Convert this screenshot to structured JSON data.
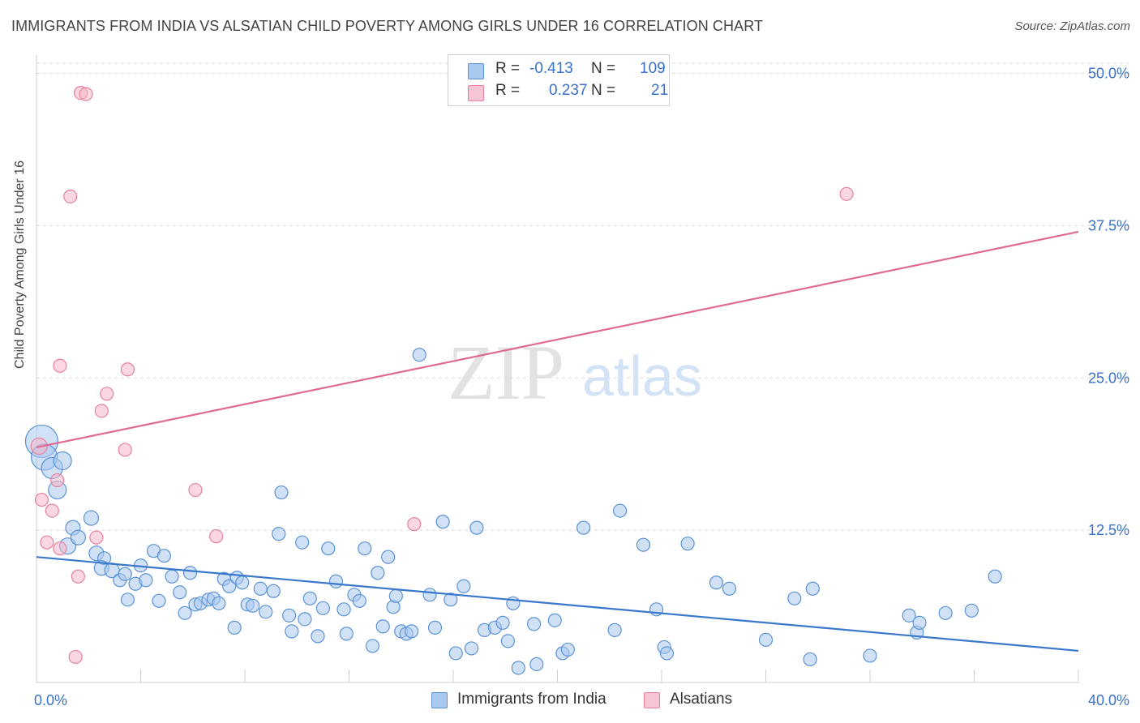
{
  "header": {
    "title": "IMMIGRANTS FROM INDIA VS ALSATIAN CHILD POVERTY AMONG GIRLS UNDER 16 CORRELATION CHART",
    "source": "Source: ZipAtlas.com"
  },
  "watermark": {
    "zip": "ZIP",
    "atlas": "atlas"
  },
  "legend": {
    "rows": [
      {
        "r_label": "R =",
        "r_value": "-0.413",
        "n_label": "N =",
        "n_value": "109"
      },
      {
        "r_label": "R =",
        "r_value": "0.237",
        "n_label": "N =",
        "n_value": "21"
      }
    ]
  },
  "colors": {
    "india_fill": "#a9c9ef",
    "india_stroke": "#5b93d6",
    "india_line": "#3a78cc",
    "alsatian_fill": "#f6b6c8",
    "alsatian_stroke": "#e6829e",
    "alsatian_line": "#e06a92",
    "axis_text": "#3a72c9",
    "grid": "#d9d9d9"
  },
  "chart_data": {
    "type": "scatter",
    "title": "IMMIGRANTS FROM INDIA VS ALSATIAN CHILD POVERTY AMONG GIRLS UNDER 16 CORRELATION CHART",
    "xlabel": "",
    "ylabel": "Child Poverty Among Girls Under 16",
    "xlim": [
      0,
      40
    ],
    "ylim": [
      0,
      51.5
    ],
    "x_tick_labels": [
      "0.0%",
      "40.0%"
    ],
    "y_ticks": [
      12.5,
      25.0,
      37.5,
      50.0
    ],
    "y_tick_labels": [
      "12.5%",
      "25.0%",
      "37.5%",
      "50.0%"
    ],
    "grid": true,
    "legend_position": "top-center",
    "series": [
      {
        "name": "Immigrants from India",
        "r": -0.413,
        "n": 109,
        "trend": {
          "x": [
            0,
            40
          ],
          "y": [
            10.3,
            2.6
          ]
        },
        "points": [
          [
            0.2,
            19.8,
            20
          ],
          [
            0.3,
            18.5,
            16
          ],
          [
            0.6,
            17.6,
            13
          ],
          [
            1.0,
            18.2,
            11
          ],
          [
            0.8,
            15.8,
            11
          ],
          [
            1.2,
            11.2,
            10
          ],
          [
            1.4,
            12.7,
            9
          ],
          [
            1.6,
            11.9,
            9
          ],
          [
            2.1,
            13.5,
            9
          ],
          [
            2.3,
            10.6,
            9
          ],
          [
            2.6,
            10.2,
            8
          ],
          [
            2.5,
            9.4,
            9
          ],
          [
            2.9,
            9.2,
            9
          ],
          [
            3.2,
            8.4,
            8
          ],
          [
            3.4,
            8.9,
            8
          ],
          [
            3.8,
            8.1,
            8
          ],
          [
            4.0,
            9.6,
            8
          ],
          [
            3.5,
            6.8,
            8
          ],
          [
            4.2,
            8.4,
            8
          ],
          [
            4.5,
            10.8,
            8
          ],
          [
            4.7,
            6.7,
            8
          ],
          [
            4.9,
            10.4,
            8
          ],
          [
            5.2,
            8.7,
            8
          ],
          [
            5.5,
            7.4,
            8
          ],
          [
            5.7,
            5.7,
            8
          ],
          [
            5.9,
            9.0,
            8
          ],
          [
            6.1,
            6.4,
            8
          ],
          [
            6.3,
            6.5,
            8
          ],
          [
            6.6,
            6.8,
            8
          ],
          [
            6.8,
            6.9,
            8
          ],
          [
            7.0,
            6.5,
            8
          ],
          [
            7.2,
            8.5,
            8
          ],
          [
            7.4,
            7.9,
            8
          ],
          [
            7.6,
            4.5,
            8
          ],
          [
            7.7,
            8.6,
            8
          ],
          [
            7.9,
            8.2,
            8
          ],
          [
            8.1,
            6.4,
            8
          ],
          [
            8.3,
            6.3,
            8
          ],
          [
            8.6,
            7.7,
            8
          ],
          [
            8.8,
            5.8,
            8
          ],
          [
            9.1,
            7.5,
            8
          ],
          [
            9.3,
            12.2,
            8
          ],
          [
            9.4,
            15.6,
            8
          ],
          [
            9.7,
            5.5,
            8
          ],
          [
            9.8,
            4.2,
            8
          ],
          [
            10.2,
            11.5,
            8
          ],
          [
            10.3,
            5.2,
            8
          ],
          [
            10.5,
            6.9,
            8
          ],
          [
            10.8,
            3.8,
            8
          ],
          [
            11.0,
            6.1,
            8
          ],
          [
            11.2,
            11.0,
            8
          ],
          [
            11.5,
            8.3,
            8
          ],
          [
            11.8,
            6.0,
            8
          ],
          [
            11.9,
            4.0,
            8
          ],
          [
            12.2,
            7.2,
            8
          ],
          [
            12.4,
            6.7,
            8
          ],
          [
            12.6,
            11.0,
            8
          ],
          [
            12.9,
            3.0,
            8
          ],
          [
            13.1,
            9.0,
            8
          ],
          [
            13.3,
            4.6,
            8
          ],
          [
            13.5,
            10.3,
            8
          ],
          [
            13.7,
            6.2,
            8
          ],
          [
            13.8,
            7.1,
            8
          ],
          [
            14.0,
            4.2,
            8
          ],
          [
            14.2,
            4.0,
            8
          ],
          [
            14.4,
            4.2,
            8
          ],
          [
            14.7,
            26.9,
            8
          ],
          [
            15.1,
            7.2,
            8
          ],
          [
            15.3,
            4.5,
            8
          ],
          [
            15.6,
            13.2,
            8
          ],
          [
            15.9,
            6.8,
            8
          ],
          [
            16.1,
            2.4,
            8
          ],
          [
            16.4,
            7.9,
            8
          ],
          [
            16.7,
            2.8,
            8
          ],
          [
            16.9,
            12.7,
            8
          ],
          [
            17.2,
            4.3,
            8
          ],
          [
            17.6,
            4.5,
            8
          ],
          [
            17.9,
            4.9,
            8
          ],
          [
            18.1,
            3.4,
            8
          ],
          [
            18.3,
            6.5,
            8
          ],
          [
            18.5,
            1.2,
            8
          ],
          [
            19.1,
            4.8,
            8
          ],
          [
            19.2,
            1.5,
            8
          ],
          [
            19.9,
            5.1,
            8
          ],
          [
            20.2,
            2.4,
            8
          ],
          [
            20.4,
            2.7,
            8
          ],
          [
            21.0,
            12.7,
            8
          ],
          [
            22.2,
            4.3,
            8
          ],
          [
            22.4,
            14.1,
            8
          ],
          [
            23.3,
            11.3,
            8
          ],
          [
            23.8,
            6.0,
            8
          ],
          [
            24.1,
            2.9,
            8
          ],
          [
            24.2,
            2.4,
            8
          ],
          [
            25.0,
            11.4,
            8
          ],
          [
            26.1,
            8.2,
            8
          ],
          [
            26.6,
            7.7,
            8
          ],
          [
            28.0,
            3.5,
            8
          ],
          [
            29.1,
            6.9,
            8
          ],
          [
            29.7,
            1.9,
            8
          ],
          [
            29.8,
            7.7,
            8
          ],
          [
            32.0,
            2.2,
            8
          ],
          [
            33.5,
            5.5,
            8
          ],
          [
            33.8,
            4.1,
            8
          ],
          [
            33.9,
            4.9,
            8
          ],
          [
            34.9,
            5.7,
            8
          ],
          [
            35.9,
            5.9,
            8
          ],
          [
            36.8,
            8.7,
            8
          ]
        ]
      },
      {
        "name": "Alsatians",
        "r": 0.237,
        "n": 21,
        "trend": {
          "x": [
            0,
            40
          ],
          "y": [
            19.3,
            37.0
          ]
        },
        "points": [
          [
            0.1,
            19.4,
            10
          ],
          [
            0.2,
            15.0,
            8
          ],
          [
            0.4,
            11.5,
            8
          ],
          [
            0.6,
            14.1,
            8
          ],
          [
            0.8,
            16.6,
            8
          ],
          [
            0.9,
            11.0,
            8
          ],
          [
            1.3,
            39.9,
            8
          ],
          [
            1.5,
            2.1,
            8
          ],
          [
            1.6,
            8.7,
            8
          ],
          [
            1.7,
            48.4,
            8
          ],
          [
            1.9,
            48.3,
            8
          ],
          [
            2.3,
            11.9,
            8
          ],
          [
            2.5,
            22.3,
            8
          ],
          [
            2.7,
            23.7,
            8
          ],
          [
            3.4,
            19.1,
            8
          ],
          [
            3.5,
            25.7,
            8
          ],
          [
            6.1,
            15.8,
            8
          ],
          [
            6.9,
            12.0,
            8
          ],
          [
            14.5,
            13.0,
            8
          ],
          [
            31.1,
            40.1,
            8
          ],
          [
            0.9,
            26.0,
            8
          ]
        ]
      }
    ]
  },
  "bottom_legend": {
    "india_label": "Immigrants from India",
    "alsatian_label": "Alsatians"
  }
}
